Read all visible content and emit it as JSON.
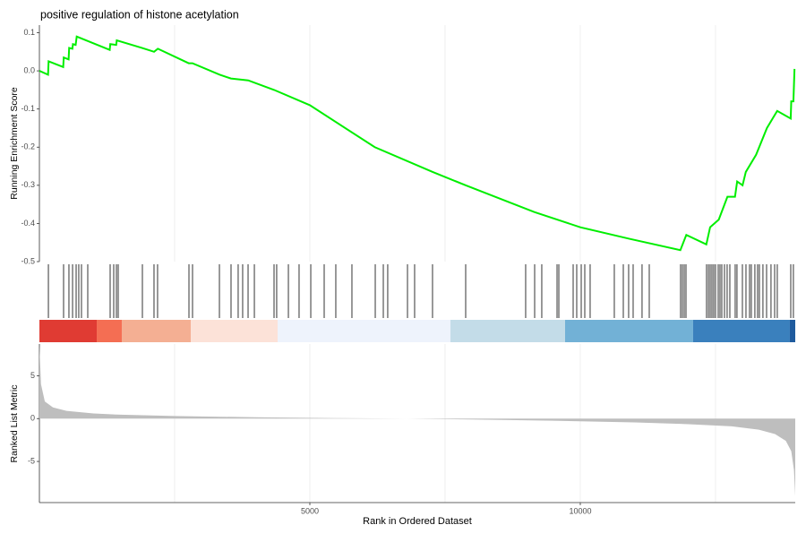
{
  "chart_data": {
    "type": "gsea",
    "title": "positive regulation of histone acetylation",
    "xlabel": "Rank in Ordered Dataset",
    "xlim": [
      0,
      13974
    ],
    "xticks": [
      5000,
      10000
    ],
    "xgrid": [
      2500,
      5000,
      7500,
      10000,
      12500
    ],
    "running": {
      "ylabel": "Running Enrichment Score",
      "color": "#00ee00",
      "ylim": [
        -0.5,
        0.12
      ],
      "yticks": [
        0.1,
        {
          "value": 0,
          "label": "0.0"
        },
        -0.1,
        -0.2,
        -0.3,
        -0.4,
        -0.5
      ],
      "x": [
        0,
        160,
        170,
        440,
        450,
        540,
        550,
        610,
        620,
        670,
        690,
        1300,
        1310,
        1420,
        1430,
        1900,
        2120,
        2190,
        2760,
        2830,
        3330,
        3540,
        3860,
        4340,
        5000,
        6200,
        7270,
        7880,
        9150,
        10000,
        10900,
        11850,
        11960,
        12330,
        12400,
        12560,
        12720,
        12860,
        12900,
        13000,
        13060,
        13250,
        13450,
        13640,
        13890,
        13900,
        13940,
        13960
      ],
      "values": [
        0,
        -0.01,
        0.025,
        0.01,
        0.035,
        0.03,
        0.06,
        0.058,
        0.07,
        0.068,
        0.09,
        0.055,
        0.07,
        0.068,
        0.08,
        0.06,
        0.05,
        0.058,
        0.02,
        0.02,
        -0.01,
        -0.02,
        -0.025,
        -0.05,
        -0.09,
        -0.2,
        -0.265,
        -0.3,
        -0.37,
        -0.41,
        -0.44,
        -0.47,
        -0.43,
        -0.455,
        -0.41,
        -0.39,
        -0.33,
        -0.33,
        -0.29,
        -0.3,
        -0.265,
        -0.22,
        -0.15,
        -0.105,
        -0.125,
        -0.08,
        -0.08,
        0.005
      ]
    },
    "hits": [
      166,
      447,
      546,
      613,
      679,
      728,
      778,
      894,
      1308,
      1374,
      1424,
      1457,
      1904,
      2119,
      2185,
      2765,
      2831,
      3328,
      3543,
      3675,
      3758,
      3858,
      3974,
      4338,
      4387,
      4603,
      4801,
      5017,
      5265,
      5480,
      5778,
      6209,
      6358,
      6440,
      6805,
      6937,
      7268,
      7881,
      8990,
      9156,
      9288,
      9570,
      9603,
      9868,
      9934,
      10017,
      10083,
      10182,
      10629,
      10795,
      10894,
      10977,
      11142,
      11275,
      11854,
      11887,
      11921,
      11954,
      12334,
      12368,
      12401,
      12434,
      12467,
      12500,
      12550,
      12583,
      12616,
      12666,
      12715,
      12765,
      12864,
      12897,
      12997,
      13063,
      13129,
      13162,
      13228,
      13278,
      13311,
      13377,
      13444,
      13526,
      13593,
      13642,
      13891,
      13940
    ],
    "colorbar": {
      "breaks": [
        0,
        1060,
        1523,
        2798,
        4404,
        7599,
        9719,
        12086,
        13874,
        13974
      ],
      "colors": [
        "#e03b33",
        "#f46e53",
        "#f4af93",
        "#fce2d8",
        "#eef3fc",
        "#c3dce8",
        "#72b1d6",
        "#3a80bd",
        "#1f5b9e"
      ]
    },
    "metric": {
      "ylabel": "Ranked List Metric",
      "color": "#bebebe",
      "ylim": [
        -9.8,
        8.7
      ],
      "yticks": [
        5,
        0,
        -5
      ],
      "x": [
        0,
        30,
        100,
        250,
        500,
        1000,
        1500,
        2500,
        4000,
        5500,
        6800,
        8000,
        9500,
        11000,
        12000,
        12800,
        13300,
        13600,
        13800,
        13900,
        13950,
        13974
      ],
      "values": [
        8.5,
        4,
        2,
        1.3,
        0.9,
        0.6,
        0.45,
        0.3,
        0.15,
        0.05,
        0,
        -0.1,
        -0.25,
        -0.45,
        -0.65,
        -0.9,
        -1.3,
        -1.8,
        -2.6,
        -3.8,
        -6,
        -9
      ]
    }
  }
}
